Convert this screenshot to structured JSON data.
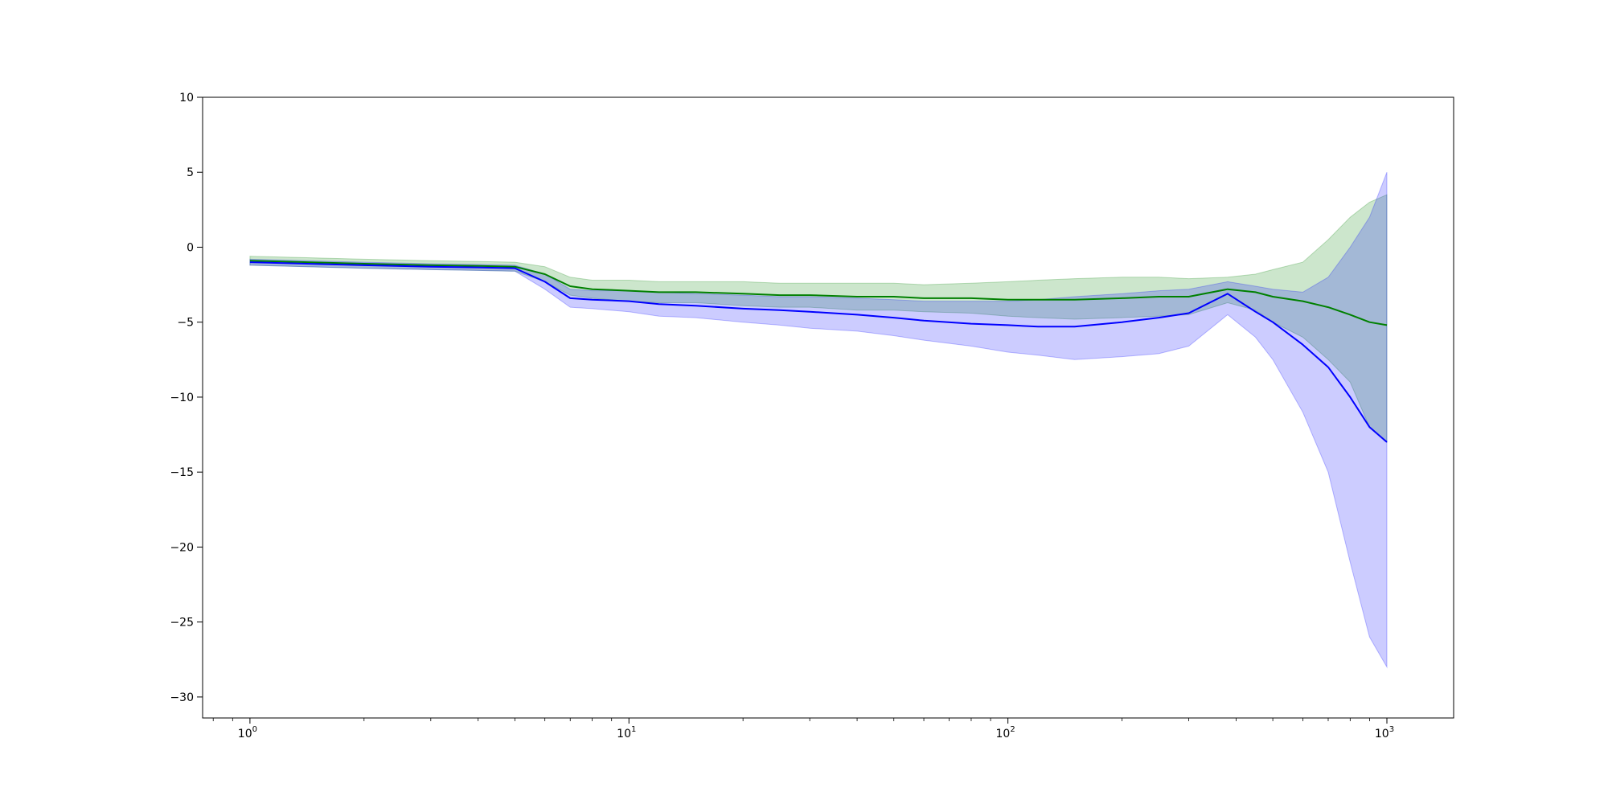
{
  "chart_data": {
    "type": "line",
    "xscale": "log",
    "xlim": [
      0.75,
      1500
    ],
    "ylim": [
      -31.4,
      10
    ],
    "grid": false,
    "xticks": [
      {
        "base": "10",
        "exp": "0"
      },
      {
        "base": "10",
        "exp": "1"
      },
      {
        "base": "10",
        "exp": "2"
      },
      {
        "base": "10",
        "exp": "3"
      }
    ],
    "yticks": [
      "10",
      "5",
      "0",
      "−5",
      "−10",
      "−15",
      "−20",
      "−25",
      "−30"
    ],
    "ytick_values": [
      10,
      5,
      0,
      -5,
      -10,
      -15,
      -20,
      -25,
      -30
    ],
    "series": [
      {
        "color": "#008000",
        "band_color": "#008000",
        "band_alpha": 0.2,
        "x": [
          1,
          2,
          3,
          4,
          5,
          6,
          7,
          8,
          10,
          12,
          15,
          20,
          25,
          30,
          40,
          50,
          60,
          80,
          100,
          120,
          150,
          200,
          250,
          300,
          380,
          450,
          500,
          600,
          700,
          800,
          900,
          1000
        ],
        "mean": [
          -0.9,
          -1.1,
          -1.2,
          -1.25,
          -1.3,
          -1.8,
          -2.6,
          -2.8,
          -2.9,
          -3.0,
          -3.0,
          -3.1,
          -3.2,
          -3.2,
          -3.3,
          -3.3,
          -3.4,
          -3.4,
          -3.5,
          -3.5,
          -3.5,
          -3.4,
          -3.3,
          -3.3,
          -2.8,
          -3.0,
          -3.3,
          -3.6,
          -4.0,
          -4.5,
          -5.0,
          -5.2
        ],
        "upper": [
          -0.6,
          -0.8,
          -0.9,
          -0.95,
          -1.0,
          -1.3,
          -2.0,
          -2.2,
          -2.2,
          -2.3,
          -2.3,
          -2.3,
          -2.4,
          -2.4,
          -2.4,
          -2.4,
          -2.5,
          -2.4,
          -2.3,
          -2.2,
          -2.1,
          -2.0,
          -2.0,
          -2.1,
          -2.0,
          -1.8,
          -1.5,
          -1.0,
          0.5,
          2.0,
          3.0,
          3.5
        ],
        "lower": [
          -1.2,
          -1.4,
          -1.5,
          -1.55,
          -1.6,
          -2.3,
          -3.2,
          -3.4,
          -3.6,
          -3.7,
          -3.7,
          -3.9,
          -4.0,
          -4.0,
          -4.2,
          -4.2,
          -4.3,
          -4.4,
          -4.6,
          -4.7,
          -4.8,
          -4.7,
          -4.6,
          -4.5,
          -3.7,
          -4.2,
          -5.0,
          -6.0,
          -7.5,
          -9.0,
          -12.0,
          -13.0
        ]
      },
      {
        "color": "#0000ff",
        "band_color": "#0000ff",
        "band_alpha": 0.2,
        "x": [
          1,
          2,
          3,
          4,
          5,
          6,
          7,
          8,
          10,
          12,
          15,
          20,
          25,
          30,
          40,
          50,
          60,
          80,
          100,
          120,
          150,
          200,
          250,
          300,
          380,
          450,
          500,
          600,
          700,
          800,
          900,
          1000
        ],
        "mean": [
          -1.0,
          -1.2,
          -1.3,
          -1.35,
          -1.4,
          -2.3,
          -3.4,
          -3.5,
          -3.6,
          -3.8,
          -3.9,
          -4.1,
          -4.2,
          -4.3,
          -4.5,
          -4.7,
          -4.9,
          -5.1,
          -5.2,
          -5.3,
          -5.3,
          -5.0,
          -4.7,
          -4.4,
          -3.1,
          -4.3,
          -5.0,
          -6.5,
          -8.0,
          -10.0,
          -12.0,
          -13.0
        ],
        "upper": [
          -0.8,
          -1.0,
          -1.1,
          -1.15,
          -1.2,
          -1.8,
          -2.8,
          -2.9,
          -2.9,
          -3.0,
          -3.1,
          -3.2,
          -3.3,
          -3.3,
          -3.4,
          -3.5,
          -3.6,
          -3.6,
          -3.6,
          -3.5,
          -3.3,
          -3.1,
          -2.9,
          -2.8,
          -2.3,
          -2.6,
          -2.8,
          -3.0,
          -2.0,
          0.0,
          2.0,
          5.0
        ],
        "lower": [
          -1.2,
          -1.4,
          -1.5,
          -1.55,
          -1.6,
          -2.8,
          -4.0,
          -4.1,
          -4.3,
          -4.6,
          -4.7,
          -5.0,
          -5.2,
          -5.4,
          -5.6,
          -5.9,
          -6.2,
          -6.6,
          -7.0,
          -7.2,
          -7.5,
          -7.3,
          -7.1,
          -6.6,
          -4.5,
          -6.0,
          -7.5,
          -11.0,
          -15.0,
          -21.0,
          -26.0,
          -28.0
        ]
      }
    ]
  }
}
